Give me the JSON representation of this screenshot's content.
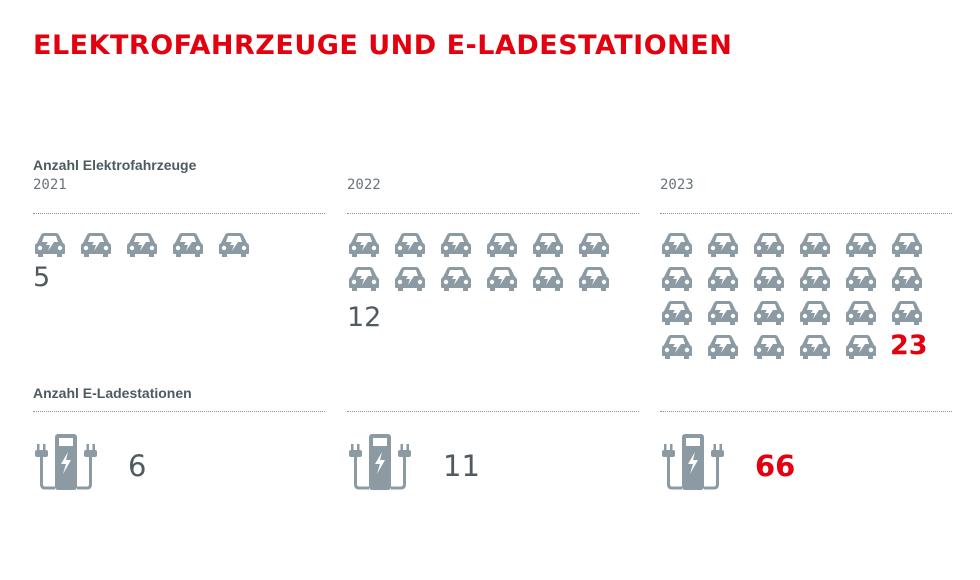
{
  "title": "ELEKTROFAHRZEUGE UND E-LADESTATIONEN",
  "vehicles_label": "Anzahl Elektrofahrzeuge",
  "stations_label": "Anzahl E-Ladestationen",
  "colors": {
    "accent": "#e3000f",
    "icon": "#8c9ba3",
    "text": "#505a60"
  },
  "icons": {
    "vehicle": "electric-car-icon",
    "station": "charging-station-icon"
  },
  "chart_data": {
    "type": "pictogram",
    "categories": [
      "2021",
      "2022",
      "2023"
    ],
    "series": [
      {
        "name": "Anzahl Elektrofahrzeuge",
        "values": [
          5,
          12,
          23
        ]
      },
      {
        "name": "Anzahl E-Ladestationen",
        "values": [
          6,
          11,
          66
        ]
      }
    ],
    "title": "ELEKTROFAHRZEUGE UND E-LADESTATIONEN"
  },
  "years": [
    {
      "year": "2021",
      "vehicles": "5",
      "stations": "6"
    },
    {
      "year": "2022",
      "vehicles": "12",
      "stations": "11"
    },
    {
      "year": "2023",
      "vehicles": "23",
      "stations": "66"
    }
  ]
}
